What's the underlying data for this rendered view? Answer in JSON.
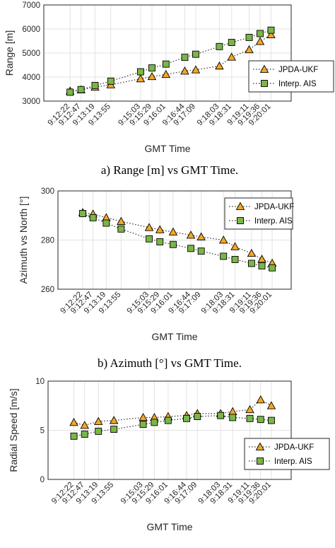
{
  "chart_data": [
    {
      "type": "line",
      "caption": "a) Range [m] vs GMT Time.",
      "xlabel": "GMT Time",
      "ylabel": "Range [m]",
      "ylim": [
        3000,
        7000
      ],
      "yticks": [
        "3000",
        "4000",
        "5000",
        "6000",
        "7000"
      ],
      "grid": true,
      "legend_position": "right",
      "x_tick_labels": [
        "9:12:22",
        "9:12:47",
        "9:13:19",
        "9:13:55",
        "9:15:03",
        "9:15:29",
        "9:16:01",
        "9:16:44",
        "9:17:09",
        "9:18:03",
        "9:18:31",
        "9:19:11",
        "9:19:36",
        "9:20:01"
      ],
      "series": [
        {
          "name": "JPDA-UKF",
          "marker": "triangle",
          "color": "#f5a623",
          "values": [
            3420,
            3470,
            3580,
            3680,
            3930,
            4020,
            4110,
            4250,
            4300,
            4460,
            4830,
            5140,
            5480,
            5760
          ]
        },
        {
          "name": "Interp. AIS",
          "marker": "square",
          "color": "#7ab648",
          "values": [
            3370,
            3480,
            3650,
            3830,
            4220,
            4380,
            4540,
            4820,
            4950,
            5270,
            5440,
            5650,
            5810,
            5950
          ]
        }
      ]
    },
    {
      "type": "line",
      "caption": "b) Azimuth [°] vs GMT Time.",
      "xlabel": "GMT Time",
      "ylabel": "Azimuth vs North [°]",
      "ylim": [
        260,
        300
      ],
      "yticks": [
        "260",
        "280",
        "300"
      ],
      "grid": true,
      "legend_position": "top-right",
      "x_tick_labels": [
        "9:12:22",
        "9:12:47",
        "9:13:19",
        "9:13:55",
        "9:15:03",
        "9:15:29",
        "9:16:01",
        "9:16:44",
        "9:17:09",
        "9:18:03",
        "9:18:31",
        "9:19:11",
        "9:19:36",
        "9:20:01"
      ],
      "series": [
        {
          "name": "JPDA-UKF",
          "marker": "triangle",
          "color": "#f5a623",
          "values": [
            291.2,
            290.6,
            289.1,
            287.6,
            285.1,
            284.2,
            283.3,
            282.0,
            281.3,
            280.0,
            277.3,
            274.6,
            272.2,
            270.6
          ]
        },
        {
          "name": "Interp. AIS",
          "marker": "square",
          "color": "#7ab648",
          "values": [
            290.8,
            289.1,
            286.9,
            284.5,
            280.5,
            279.3,
            278.2,
            276.6,
            275.5,
            273.4,
            272.1,
            270.5,
            269.5,
            268.7
          ]
        }
      ]
    },
    {
      "type": "line",
      "caption": "",
      "xlabel": "GMT Time",
      "ylabel": "Radial Speed [m/s]",
      "ylim": [
        0,
        10
      ],
      "yticks": [
        "0",
        "5",
        "10"
      ],
      "grid": true,
      "legend_position": "bottom-right",
      "x_tick_labels": [
        "9:12:22",
        "9:12:47",
        "9:13:19",
        "9:13:55",
        "9:15:03",
        "9:15:29",
        "9:16:01",
        "9:16:44",
        "9:17:09",
        "9:18:03",
        "9:18:31",
        "9:19:11",
        "9:19:36",
        "9:20:01"
      ],
      "series": [
        {
          "name": "JPDA-UKF",
          "marker": "triangle",
          "color": "#f5a623",
          "values": [
            5.8,
            5.5,
            5.9,
            6.0,
            6.3,
            6.3,
            6.4,
            6.5,
            6.7,
            6.7,
            6.9,
            7.1,
            8.1,
            7.5
          ]
        },
        {
          "name": "Interp. AIS",
          "marker": "square",
          "color": "#7ab648",
          "values": [
            4.4,
            4.6,
            4.9,
            5.1,
            5.6,
            5.8,
            6.0,
            6.2,
            6.4,
            6.5,
            6.3,
            6.2,
            6.1,
            6.0
          ]
        }
      ]
    }
  ]
}
